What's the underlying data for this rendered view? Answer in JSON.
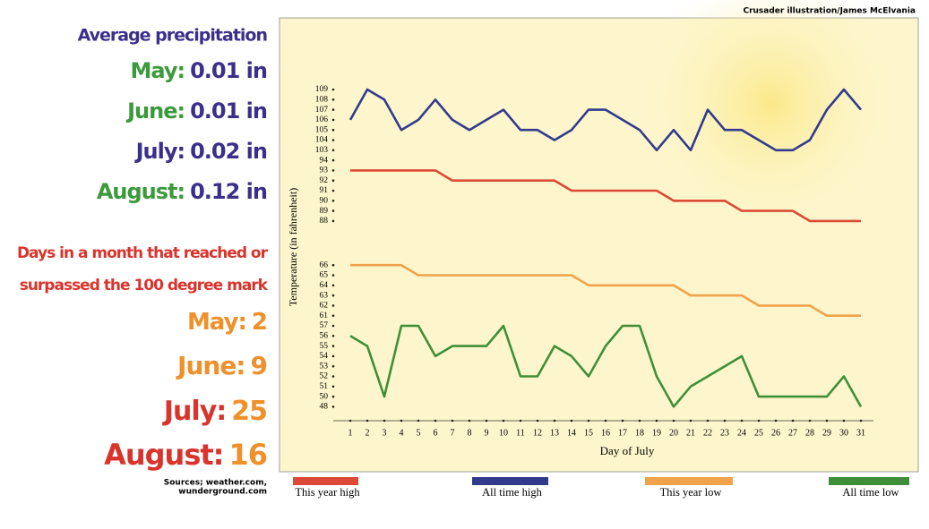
{
  "credit": "Crusader illustration/James McElvania",
  "sources": [
    "Sources; weather.com,",
    "wunderground.com"
  ],
  "precipitation": {
    "title": "Average precipitation",
    "title_color": "#3a2f8a",
    "items": [
      {
        "label": "May:",
        "value": "0.01 in",
        "label_color": "#3b9a3b",
        "value_color": "#3a2f8a"
      },
      {
        "label": "June:",
        "value": "0.01 in",
        "label_color": "#3b9a3b",
        "value_color": "#3a2f8a"
      },
      {
        "label": "July:",
        "value": "0.02 in",
        "label_color": "#3a2f8a",
        "value_color": "#3a2f8a"
      },
      {
        "label": "August:",
        "value": "0.12 in",
        "label_color": "#3b9a3b",
        "value_color": "#3a2f8a"
      }
    ]
  },
  "hot_days": {
    "title": [
      "Days in a month that  reached or",
      "surpassed the 100 degree mark"
    ],
    "title_color": "#d8342c",
    "items": [
      {
        "label": "May:",
        "value": 2,
        "label_color": "#f0902a",
        "value_color": "#f0902a"
      },
      {
        "label": "June:",
        "value": 9,
        "label_color": "#f0902a",
        "value_color": "#f0902a"
      },
      {
        "label": "July:",
        "value": 25,
        "label_color": "#d8342c",
        "value_color": "#f0902a"
      },
      {
        "label": "August:",
        "value": 16,
        "label_color": "#d8342c",
        "value_color": "#f0902a"
      }
    ]
  },
  "chart_data": {
    "type": "line",
    "xlabel": "Day of July",
    "ylabel": "Temperature (in fahrenheit)",
    "categories": [
      1,
      2,
      3,
      4,
      5,
      6,
      7,
      8,
      9,
      10,
      11,
      12,
      13,
      14,
      15,
      16,
      17,
      18,
      19,
      20,
      21,
      22,
      23,
      24,
      25,
      26,
      27,
      28,
      29,
      30,
      31
    ],
    "yticks": [
      109,
      108,
      107,
      106,
      105,
      104,
      103,
      94,
      93,
      92,
      91,
      90,
      89,
      88,
      66,
      65,
      64,
      63,
      62,
      61,
      57,
      56,
      55,
      54,
      53,
      52,
      51,
      50,
      48
    ],
    "series": [
      {
        "name": "This year high",
        "color": "#dc4a36",
        "values": [
          93,
          93,
          93,
          93,
          93,
          93,
          92,
          92,
          92,
          92,
          92,
          92,
          92,
          91,
          91,
          91,
          91,
          91,
          91,
          90,
          90,
          90,
          90,
          89,
          89,
          89,
          89,
          88,
          88,
          88,
          88
        ]
      },
      {
        "name": "All time high",
        "color": "#323a8e",
        "values": [
          106,
          109,
          108,
          105,
          106,
          108,
          106,
          105,
          106,
          107,
          105,
          105,
          104,
          105,
          107,
          107,
          106,
          105,
          103,
          105,
          103,
          107,
          105,
          105,
          104,
          103,
          103,
          104,
          107,
          109,
          107
        ]
      },
      {
        "name": "This year low",
        "color": "#f0a24a",
        "values": [
          66,
          66,
          66,
          66,
          65,
          65,
          65,
          65,
          65,
          65,
          65,
          65,
          65,
          65,
          64,
          64,
          64,
          64,
          64,
          64,
          63,
          63,
          63,
          63,
          62,
          62,
          62,
          62,
          61,
          61,
          61
        ]
      },
      {
        "name": "All time low",
        "color": "#3f8f3a",
        "values": [
          56,
          55,
          50,
          57,
          57,
          54,
          55,
          55,
          55,
          57,
          52,
          52,
          55,
          54,
          52,
          55,
          57,
          57,
          52,
          48,
          51,
          52,
          53,
          54,
          50,
          50,
          50,
          50,
          50,
          52,
          48
        ]
      }
    ]
  }
}
